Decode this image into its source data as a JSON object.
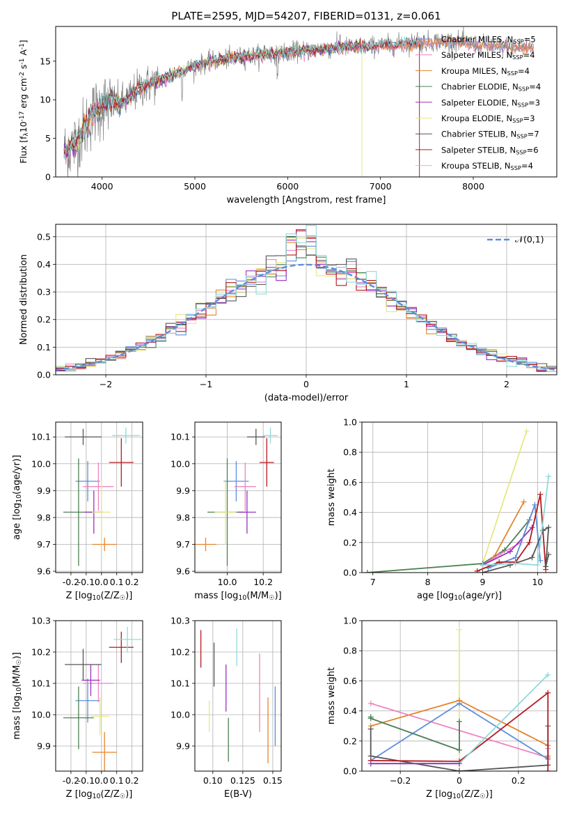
{
  "figure": {
    "title": "PLATE=2595, MJD=54207, FIBERID=0131, z=0.061"
  },
  "colors": {
    "Chabrier MILES": "#5b8ede",
    "Salpeter MILES": "#ee82c1",
    "Kroupa MILES": "#e6832b",
    "Chabrier ELODIE": "#4b7f55",
    "Salpeter ELODIE": "#9a2fbf",
    "Kroupa ELODIE": "#e4e982",
    "Chabrier STELIB": "#555555",
    "Salpeter STELIB": "#b3191e",
    "Kroupa STELIB": "#8fd9dc"
  },
  "chart_data": [
    {
      "id": "spectrum",
      "type": "line",
      "xlabel": "wavelength [Angstrom, rest frame]",
      "ylabel": "Flux [f$_\\lambda$10$^{-17}$ erg cm$^{-2}$ s$^{-1}$ A$^{-1}$]",
      "xlim": [
        3500,
        8900
      ],
      "ylim": [
        0,
        19.5
      ],
      "xticks": [
        4000,
        5000,
        6000,
        7000,
        8000
      ],
      "yticks": [
        0,
        5,
        10,
        15
      ],
      "legend": "upper right",
      "data_color": "#808080",
      "continuum": {
        "x": [
          3600,
          3700,
          3800,
          3900,
          4000,
          4100,
          4200,
          4300,
          4400,
          4600,
          4800,
          5000,
          5200,
          5400,
          5600,
          5800,
          6000,
          6200,
          6400,
          6600,
          6800,
          7000,
          7200,
          7400,
          7600,
          7800,
          8000,
          8200,
          8400,
          8650
        ],
        "y": [
          3.2,
          4.2,
          6.0,
          8.2,
          9.2,
          9.6,
          9.4,
          10.3,
          11.5,
          12.4,
          13.4,
          14.4,
          15.0,
          15.4,
          15.7,
          15.9,
          16.2,
          16.4,
          16.6,
          16.8,
          16.9,
          17.0,
          17.2,
          17.4,
          17.6,
          17.6,
          17.2,
          17.0,
          16.9,
          16.8
        ]
      },
      "series": [
        {
          "name": "Chabrier MILES, N$_{SSP}$=5"
        },
        {
          "name": "Salpeter MILES, N$_{SSP}$=4"
        },
        {
          "name": "Kroupa MILES, N$_{SSP}$=4"
        },
        {
          "name": "Chabrier ELODIE, N$_{SSP}$=4"
        },
        {
          "name": "Salpeter ELODIE, N$_{SSP}$=3"
        },
        {
          "name": "Kroupa ELODIE, N$_{SSP}$=3"
        },
        {
          "name": "Chabrier STELIB, N$_{SSP}$=7"
        },
        {
          "name": "Salpeter STELIB, N$_{SSP}$=6"
        },
        {
          "name": "Kroupa STELIB, N$_{SSP}$=4"
        }
      ]
    },
    {
      "id": "residuals",
      "type": "line",
      "xlabel": "(data-model)/error",
      "ylabel": "Normed distribution",
      "xlim": [
        -2.5,
        2.5
      ],
      "ylim": [
        0,
        0.545
      ],
      "xticks": [
        -2,
        -1,
        0,
        1,
        2
      ],
      "yticks": [
        0.0,
        0.1,
        0.2,
        0.3,
        0.4,
        0.5
      ],
      "grid": true,
      "legend": "upper right",
      "normal_label": "$\\mathcal{N}(0,1)$"
    },
    {
      "id": "age_vs_Z",
      "type": "scatter",
      "xlabel": "Z [log$_{10}$(Z/Z$_\\odot$)]",
      "ylabel": "age  [log$_{10}$(age/yr)]",
      "xlim": [
        -0.3,
        0.27
      ],
      "ylim": [
        9.595,
        10.155
      ],
      "xticks": [
        -0.2,
        -0.1,
        0.0,
        0.1,
        0.2
      ],
      "yticks": [
        9.6,
        9.7,
        9.8,
        9.9,
        10.0,
        10.1
      ],
      "grid": true,
      "points": [
        {
          "model": "Chabrier MILES",
          "x": -0.09,
          "xerr": 0.08,
          "y": 9.935,
          "yerr": 0.075
        },
        {
          "model": "Salpeter MILES",
          "x": -0.02,
          "xerr": 0.1,
          "y": 9.915,
          "yerr": 0.09
        },
        {
          "model": "Kroupa MILES",
          "x": 0.02,
          "xerr": 0.08,
          "y": 9.7,
          "yerr": 0.025
        },
        {
          "model": "Chabrier ELODIE",
          "x": -0.15,
          "xerr": 0.1,
          "y": 9.82,
          "yerr": 0.2
        },
        {
          "model": "Salpeter ELODIE",
          "x": -0.05,
          "xerr": 0.06,
          "y": 9.82,
          "yerr": 0.08
        },
        {
          "model": "Kroupa ELODIE",
          "x": 0.0,
          "xerr": 0.06,
          "y": 9.82,
          "yerr": 0.12
        },
        {
          "model": "Chabrier STELIB",
          "x": -0.12,
          "xerr": 0.12,
          "y": 10.1,
          "yerr": 0.03
        },
        {
          "model": "Salpeter STELIB",
          "x": 0.13,
          "xerr": 0.08,
          "y": 10.005,
          "yerr": 0.09
        },
        {
          "model": "Kroupa STELIB",
          "x": 0.16,
          "xerr": 0.09,
          "y": 10.105,
          "yerr": 0.03
        }
      ]
    },
    {
      "id": "age_vs_mass",
      "type": "scatter",
      "xlabel": "mass [log$_{10}$(M/M$_\\odot$)]",
      "ylabel": "",
      "xlim": [
        9.82,
        10.3
      ],
      "ylim": [
        9.595,
        10.155
      ],
      "xticks": [
        10.0,
        10.2
      ],
      "yticks": [
        9.6,
        9.7,
        9.8,
        9.9,
        10.0,
        10.1
      ],
      "grid": true,
      "points": [
        {
          "model": "Chabrier MILES",
          "x": 10.05,
          "xerr": 0.07,
          "y": 9.935,
          "yerr": 0.075
        },
        {
          "model": "Salpeter MILES",
          "x": 10.1,
          "xerr": 0.06,
          "y": 9.915,
          "yerr": 0.09
        },
        {
          "model": "Kroupa MILES",
          "x": 9.88,
          "xerr": 0.06,
          "y": 9.7,
          "yerr": 0.025
        },
        {
          "model": "Chabrier ELODIE",
          "x": 10.0,
          "xerr": 0.11,
          "y": 9.82,
          "yerr": 0.2
        },
        {
          "model": "Salpeter ELODIE",
          "x": 10.11,
          "xerr": 0.05,
          "y": 9.82,
          "yerr": 0.08
        },
        {
          "model": "Kroupa ELODIE",
          "x": 9.99,
          "xerr": 0.06,
          "y": 9.82,
          "yerr": 0.12
        },
        {
          "model": "Chabrier STELIB",
          "x": 10.16,
          "xerr": 0.05,
          "y": 10.1,
          "yerr": 0.03
        },
        {
          "model": "Salpeter STELIB",
          "x": 10.22,
          "xerr": 0.04,
          "y": 10.005,
          "yerr": 0.09
        },
        {
          "model": "Kroupa STELIB",
          "x": 10.24,
          "xerr": 0.04,
          "y": 10.105,
          "yerr": 0.03
        }
      ]
    },
    {
      "id": "weights_vs_age",
      "type": "line",
      "xlabel": "age  [log$_{10}$(age/yr)]",
      "ylabel": "mass weight",
      "xlim": [
        6.8,
        10.35
      ],
      "ylim": [
        0,
        1.0
      ],
      "xticks": [
        7,
        8,
        9,
        10
      ],
      "yticks": [
        0.0,
        0.2,
        0.4,
        0.6,
        0.8,
        1.0
      ],
      "grid": true,
      "series": [
        {
          "model": "Kroupa ELODIE",
          "x": [
            6.9,
            9.0,
            9.8
          ],
          "y": [
            0.0,
            0.06,
            0.94
          ]
        },
        {
          "model": "Chabrier ELODIE",
          "x": [
            6.9,
            9.0,
            9.4,
            9.85
          ],
          "y": [
            0.0,
            0.06,
            0.15,
            0.35
          ]
        },
        {
          "model": "Kroupa MILES",
          "x": [
            9.0,
            9.2,
            9.75
          ],
          "y": [
            0.05,
            0.1,
            0.47
          ]
        },
        {
          "model": "Salpeter MILES",
          "x": [
            9.0,
            9.3,
            9.7,
            9.95
          ],
          "y": [
            0.05,
            0.12,
            0.2,
            0.45
          ]
        },
        {
          "model": "Salpeter ELODIE",
          "x": [
            9.0,
            9.5,
            9.9
          ],
          "y": [
            0.05,
            0.14,
            0.3
          ]
        },
        {
          "model": "Chabrier MILES",
          "x": [
            9.1,
            9.6,
            9.95,
            10.05
          ],
          "y": [
            0.03,
            0.1,
            0.45,
            0.08
          ]
        },
        {
          "model": "Salpeter STELIB",
          "x": [
            8.9,
            9.3,
            9.6,
            9.85,
            10.05,
            10.15
          ],
          "y": [
            0.01,
            0.07,
            0.07,
            0.2,
            0.52,
            0.02
          ]
        },
        {
          "model": "Chabrier STELIB",
          "x": [
            9.0,
            9.5,
            9.9,
            10.1,
            10.2,
            10.15,
            10.2
          ],
          "y": [
            0.0,
            0.05,
            0.1,
            0.28,
            0.3,
            0.04,
            0.12
          ]
        },
        {
          "model": "Kroupa STELIB",
          "x": [
            9.0,
            9.6,
            10.0,
            10.2
          ],
          "y": [
            0.05,
            0.06,
            0.05,
            0.64
          ]
        }
      ]
    },
    {
      "id": "mass_vs_Z",
      "type": "scatter",
      "xlabel": "Z [log$_{10}$(Z/Z$_\\odot$)]",
      "ylabel": "mass [log$_{10}$(M/M$_\\odot$)]",
      "xlim": [
        -0.3,
        0.27
      ],
      "ylim": [
        9.82,
        10.3
      ],
      "xticks": [
        -0.2,
        -0.1,
        0.0,
        0.1,
        0.2
      ],
      "yticks": [
        9.9,
        10.0,
        10.1,
        10.2,
        10.3
      ],
      "grid": true,
      "points": [
        {
          "model": "Chabrier MILES",
          "x": -0.09,
          "xerr": 0.08,
          "y": 10.045,
          "yerr": 0.07
        },
        {
          "model": "Salpeter MILES",
          "x": -0.02,
          "xerr": 0.1,
          "y": 10.1,
          "yerr": 0.06
        },
        {
          "model": "Kroupa MILES",
          "x": 0.02,
          "xerr": 0.08,
          "y": 9.88,
          "yerr": 0.065
        },
        {
          "model": "Chabrier ELODIE",
          "x": -0.15,
          "xerr": 0.1,
          "y": 9.99,
          "yerr": 0.1
        },
        {
          "model": "Salpeter ELODIE",
          "x": -0.07,
          "xerr": 0.06,
          "y": 10.11,
          "yerr": 0.05
        },
        {
          "model": "Kroupa ELODIE",
          "x": -0.01,
          "xerr": 0.06,
          "y": 9.995,
          "yerr": 0.06
        },
        {
          "model": "Chabrier STELIB",
          "x": -0.12,
          "xerr": 0.12,
          "y": 10.16,
          "yerr": 0.05
        },
        {
          "model": "Salpeter STELIB",
          "x": 0.13,
          "xerr": 0.08,
          "y": 10.215,
          "yerr": 0.05
        },
        {
          "model": "Kroupa STELIB",
          "x": 0.17,
          "xerr": 0.09,
          "y": 10.24,
          "yerr": 0.04
        }
      ]
    },
    {
      "id": "mass_vs_ebv",
      "type": "scatter",
      "xlabel": "E(B-V)",
      "ylabel": "",
      "xlim": [
        0.085,
        0.157
      ],
      "ylim": [
        9.82,
        10.3
      ],
      "xticks": [
        0.1,
        0.125,
        0.15
      ],
      "yticks": [
        9.9,
        10.0,
        10.1,
        10.2,
        10.3
      ],
      "grid": true,
      "points": [
        {
          "model": "Chabrier MILES",
          "x": 0.152,
          "y": 9.995,
          "yerr": 0.095
        },
        {
          "model": "Salpeter MILES",
          "x": 0.139,
          "y": 10.07,
          "yerr": 0.125
        },
        {
          "model": "Kroupa MILES",
          "x": 0.146,
          "y": 9.95,
          "yerr": 0.105
        },
        {
          "model": "Chabrier ELODIE",
          "x": 0.113,
          "y": 9.92,
          "yerr": 0.07
        },
        {
          "model": "Salpeter ELODIE",
          "x": 0.111,
          "y": 10.085,
          "yerr": 0.075
        },
        {
          "model": "Kroupa ELODIE",
          "x": 0.097,
          "y": 9.995,
          "yerr": 0.05
        },
        {
          "model": "Chabrier STELIB",
          "x": 0.101,
          "y": 10.16,
          "yerr": 0.07
        },
        {
          "model": "Salpeter STELIB",
          "x": 0.09,
          "y": 10.21,
          "yerr": 0.06
        },
        {
          "model": "Kroupa STELIB",
          "x": 0.12,
          "y": 10.215,
          "yerr": 0.06
        }
      ]
    },
    {
      "id": "weights_vs_Z",
      "type": "line",
      "xlabel": "Z [log$_{10}$(Z/Z$_\\odot$)]",
      "ylabel": "mass weight",
      "xlim": [
        -0.33,
        0.33
      ],
      "ylim": [
        0,
        1.0
      ],
      "xticks": [
        -0.2,
        0.0,
        0.2
      ],
      "yticks": [
        0.0,
        0.2,
        0.4,
        0.6,
        0.8,
        1.0
      ],
      "grid": true,
      "series": [
        {
          "model": "Kroupa ELODIE",
          "x": [
            0.0,
            0.0
          ],
          "y": [
            0.0,
            0.94
          ]
        },
        {
          "model": "Kroupa MILES",
          "x": [
            -0.3,
            0.0,
            0.3,
            0.3
          ],
          "y": [
            0.3,
            0.47,
            0.17,
            0.1
          ]
        },
        {
          "model": "Salpeter MILES",
          "x": [
            -0.3,
            0.3,
            0.3
          ],
          "y": [
            0.45,
            0.09,
            0.15
          ]
        },
        {
          "model": "Chabrier MILES",
          "x": [
            -0.3,
            0.0,
            0.3
          ],
          "y": [
            0.07,
            0.45,
            0.08
          ]
        },
        {
          "model": "Chabrier ELODIE",
          "x": [
            -0.3,
            -0.3,
            0.0,
            0.0
          ],
          "y": [
            0.36,
            0.35,
            0.14,
            0.33
          ]
        },
        {
          "model": "Chabrier STELIB",
          "x": [
            -0.3,
            -0.3,
            0.0,
            0.3,
            0.3
          ],
          "y": [
            0.28,
            0.1,
            0.0,
            0.04,
            0.3
          ]
        },
        {
          "model": "Salpeter STELIB",
          "x": [
            -0.3,
            0.0,
            0.3,
            0.3
          ],
          "y": [
            0.07,
            0.065,
            0.52,
            0.0
          ]
        },
        {
          "model": "Kroupa STELIB",
          "x": [
            -0.3,
            0.0,
            0.3
          ],
          "y": [
            0.05,
            0.05,
            0.64
          ]
        },
        {
          "model": "Salpeter ELODIE",
          "x": [
            -0.3,
            0.0
          ],
          "y": [
            0.05,
            0.05
          ]
        }
      ]
    }
  ]
}
